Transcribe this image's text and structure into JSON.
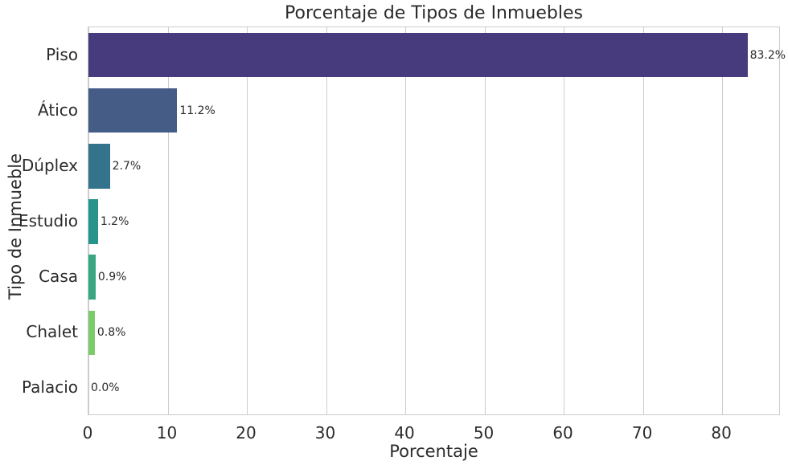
{
  "chart_data": {
    "type": "bar",
    "orientation": "horizontal",
    "title": "Porcentaje de Tipos de Inmuebles",
    "xlabel": "Porcentaje",
    "ylabel": "Tipo de Inmueble",
    "categories": [
      "Piso",
      "Ático",
      "Dúplex",
      "Estudio",
      "Casa",
      "Chalet",
      "Palacio"
    ],
    "values": [
      83.2,
      11.2,
      2.7,
      1.2,
      0.9,
      0.8,
      0.0
    ],
    "bar_labels": [
      "83.2%",
      "11.2%",
      "2.7%",
      "1.2%",
      "0.9%",
      "0.8%",
      "0.0%"
    ],
    "bar_colors": [
      "#473a7d",
      "#455c87",
      "#33738c",
      "#26948a",
      "#3aa581",
      "#7ccb6a",
      "#fde725"
    ],
    "xlim": [
      0,
      87.4
    ],
    "xticks": [
      0,
      10,
      20,
      30,
      40,
      50,
      60,
      70,
      80
    ],
    "bar_height_ratio": 0.8,
    "grid": true,
    "grid_color": "#cccccc",
    "axis_edge_color": "#cccccc",
    "text_color": "#2b2b2b",
    "background_color": "#ffffff"
  }
}
